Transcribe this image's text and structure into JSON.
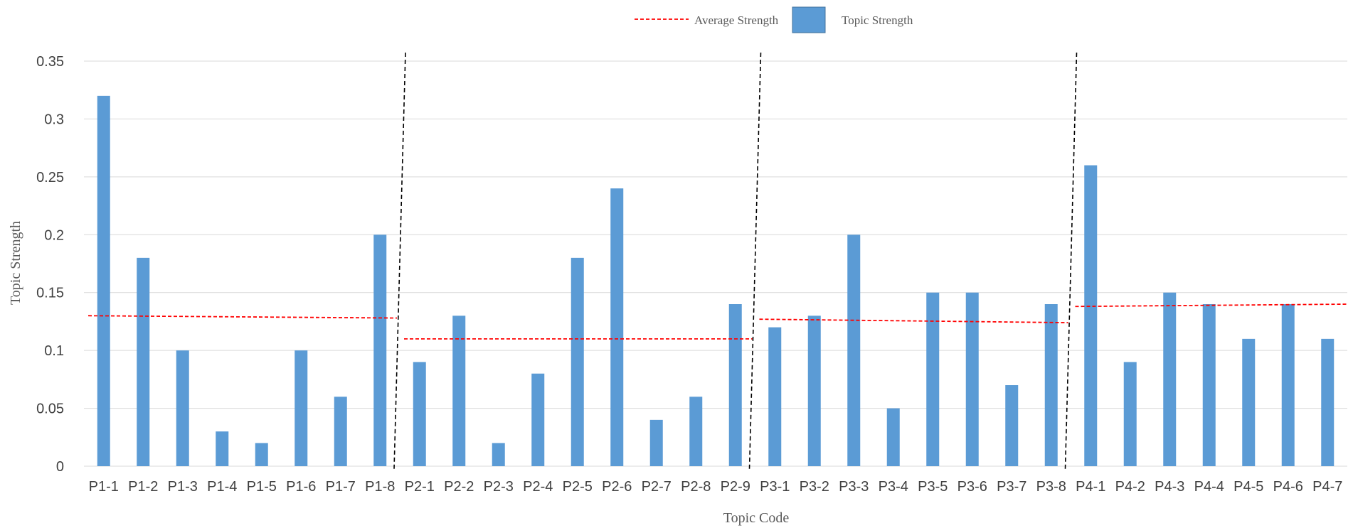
{
  "chart_data": {
    "type": "bar",
    "xlabel": "Topic Code",
    "ylabel": "Topic Strength",
    "ylim": [
      0,
      0.35
    ],
    "yticks": [
      "0",
      "0.05",
      "0.1",
      "0.15",
      "0.2",
      "0.25",
      "0.3",
      "0.35"
    ],
    "grid": true,
    "legend_position": "top-center",
    "legend": {
      "average": "Average Strength",
      "topic": "Topic Strength"
    },
    "colors": {
      "bar": "#5b9bd5",
      "average": "#ff0000"
    },
    "categories": [
      "P1-1",
      "P1-2",
      "P1-3",
      "P1-4",
      "P1-5",
      "P1-6",
      "P1-7",
      "P1-8",
      "P2-1",
      "P2-2",
      "P2-3",
      "P2-4",
      "P2-5",
      "P2-6",
      "P2-7",
      "P2-8",
      "P2-9",
      "P3-1",
      "P3-2",
      "P3-3",
      "P3-4",
      "P3-5",
      "P3-6",
      "P3-7",
      "P3-8",
      "P4-1",
      "P4-2",
      "P4-3",
      "P4-4",
      "P4-5",
      "P4-6",
      "P4-7"
    ],
    "values": [
      0.32,
      0.18,
      0.1,
      0.03,
      0.02,
      0.1,
      0.06,
      0.2,
      0.09,
      0.13,
      0.02,
      0.08,
      0.18,
      0.24,
      0.04,
      0.06,
      0.14,
      0.12,
      0.13,
      0.2,
      0.05,
      0.15,
      0.15,
      0.07,
      0.14,
      0.26,
      0.09,
      0.15,
      0.14,
      0.11,
      0.14,
      0.11
    ],
    "dividers_after": [
      "P1-8",
      "P2-9",
      "P3-8"
    ],
    "average_segments": [
      {
        "from": "P1-1",
        "to": "P1-8",
        "start": 0.13,
        "end": 0.128
      },
      {
        "from": "P2-1",
        "to": "P2-9",
        "start": 0.11,
        "end": 0.11
      },
      {
        "from": "P3-1",
        "to": "P3-8",
        "start": 0.127,
        "end": 0.124
      },
      {
        "from": "P4-1",
        "to": "P4-7",
        "start": 0.138,
        "end": 0.14
      }
    ]
  }
}
